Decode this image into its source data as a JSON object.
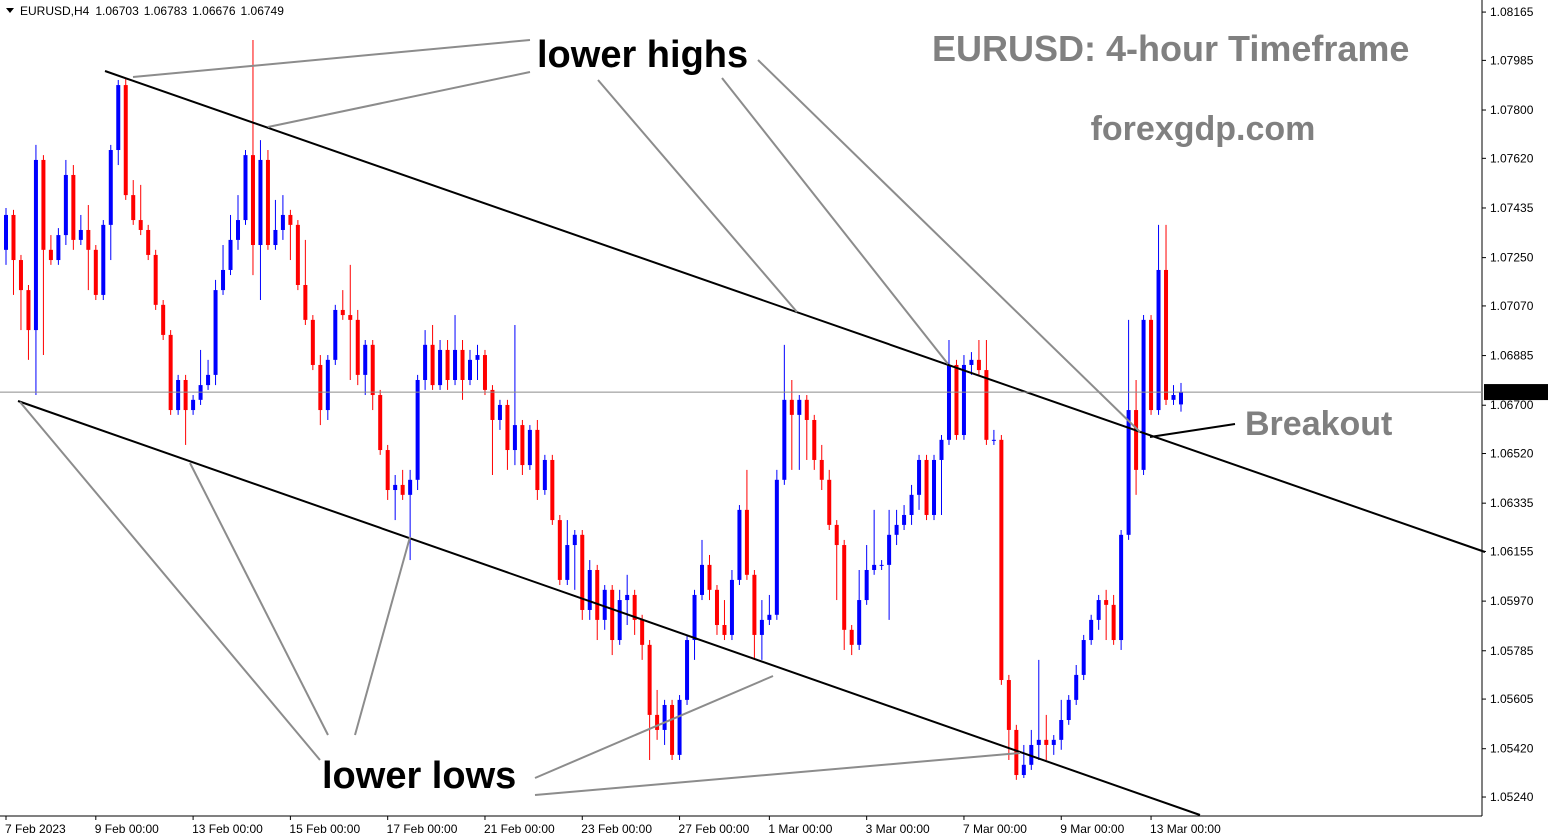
{
  "chart_data": {
    "type": "candlestick",
    "symbol": "EURUSD,H4",
    "title": "EURUSD: 4-hour Timeframe",
    "subtitle": "forexgdp.com",
    "annotations": [
      "lower highs",
      "lower lows",
      "Breakout"
    ],
    "up_color": "#0000ff",
    "down_color": "#ff0000",
    "categories": [
      "7 Feb 2023",
      null,
      null,
      null,
      null,
      null,
      null,
      null,
      null,
      null,
      null,
      null,
      "9 Feb 00:00",
      null,
      null,
      null,
      null,
      null,
      null,
      null,
      null,
      null,
      null,
      null,
      null,
      "13 Feb 00:00",
      null,
      null,
      null,
      null,
      null,
      null,
      null,
      null,
      null,
      null,
      null,
      null,
      "15 Feb 00:00",
      null,
      null,
      null,
      null,
      null,
      null,
      null,
      null,
      null,
      null,
      null,
      null,
      "17 Feb 00:00",
      null,
      null,
      null,
      null,
      null,
      null,
      null,
      null,
      null,
      null,
      null,
      null,
      "21 Feb 00:00",
      null,
      null,
      null,
      null,
      null,
      null,
      null,
      null,
      null,
      null,
      null,
      null,
      "23 Feb 00:00",
      null,
      null,
      null,
      null,
      null,
      null,
      null,
      null,
      null,
      null,
      null,
      null,
      "27 Feb 00:00",
      null,
      null,
      null,
      null,
      null,
      null,
      null,
      null,
      null,
      null,
      null,
      "1 Mar 00:00",
      null,
      null,
      null,
      null,
      null,
      null,
      null,
      null,
      null,
      null,
      null,
      null,
      "3 Mar 00:00",
      null,
      null,
      null,
      null,
      null,
      null,
      null,
      null,
      null,
      null,
      null,
      null,
      "7 Mar 00:00",
      null,
      null,
      null,
      null,
      null,
      null,
      null,
      null,
      null,
      null,
      null,
      null,
      "9 Mar 00:00",
      null,
      null,
      null,
      null,
      null,
      null,
      null,
      null,
      null,
      null,
      null,
      "13 Mar 00:00",
      null,
      null,
      null,
      null
    ],
    "open": [
      1.07279,
      1.07409,
      1.07241,
      1.07129,
      1.0698,
      1.07614,
      1.07279,
      1.07241,
      1.07334,
      1.07558,
      1.07316,
      1.07353,
      1.07279,
      1.07111,
      1.07372,
      1.07651,
      1.07893,
      1.07483,
      1.0739,
      1.07353,
      1.0726,
      1.07074,
      1.06962,
      1.06682,
      1.06794,
      1.06682,
      1.0672,
      1.06775,
      1.06813,
      1.07129,
      1.07204,
      1.07316,
      1.0739,
      1.07632,
      1.07297,
      1.07614,
      1.07297,
      1.07353,
      1.07409,
      1.07372,
      1.07148,
      1.07018,
      1.0685,
      1.06682,
      1.06869,
      1.07055,
      1.07036,
      1.07018,
      1.06813,
      1.06925,
      1.06738,
      1.06533,
      1.06384,
      1.06403,
      1.06366,
      1.06422,
      1.06794,
      1.06925,
      1.06775,
      1.06906,
      1.06794,
      1.06906,
      1.06794,
      1.06869,
      1.06887,
      1.06757,
      1.06645,
      1.06701,
      1.06533,
      1.06626,
      1.06477,
      1.06608,
      1.06384,
      1.06496,
      1.06272,
      1.06049,
      1.06179,
      1.06217,
      1.05937,
      1.06086,
      1.059,
      1.06012,
      1.05825,
      1.05974,
      1.05993,
      1.059,
      1.05807,
      1.05546,
      1.0549,
      1.05583,
      1.05397,
      1.05602,
      1.05825,
      1.05993,
      1.06105,
      1.06012,
      1.05881,
      1.05844,
      1.06049,
      1.0631,
      1.06068,
      1.05844,
      1.059,
      1.05919,
      1.06422,
      1.0672,
      1.06664,
      1.0672,
      1.06645,
      1.06496,
      1.06422,
      1.06254,
      1.06179,
      1.05863,
      1.05807,
      1.05974,
      1.06086,
      1.06105,
      1.06105,
      1.06217,
      1.06254,
      1.06291,
      1.06366,
      1.06496,
      1.06291,
      1.06496,
      1.06571,
      1.0685,
      1.06589,
      1.0685,
      1.06869,
      1.06831,
      1.06571,
      1.06571,
      1.05676,
      1.0549,
      1.05322,
      1.0536,
      1.05434,
      1.05453,
      1.05434,
      1.05453,
      1.05527,
      1.05602,
      1.05695,
      1.05825,
      1.059,
      1.05974,
      1.05956,
      1.05825,
      1.06217,
      1.06682,
      1.06459,
      1.07018,
      1.06682,
      1.07204,
      1.0672,
      1.06703
    ],
    "high": [
      1.07435,
      1.07428,
      1.0726,
      1.07148,
      1.0767,
      1.07632,
      1.07334,
      1.0736,
      1.07614,
      1.07595,
      1.07409,
      1.07446,
      1.07297,
      1.0739,
      1.0767,
      1.07912,
      1.07919,
      1.07539,
      1.07521,
      1.07372,
      1.07279,
      1.07092,
      1.0698,
      1.06813,
      1.06813,
      1.06738,
      1.06906,
      1.06869,
      1.07167,
      1.07297,
      1.07409,
      1.07483,
      1.07651,
      1.08061,
      1.07688,
      1.07651,
      1.07465,
      1.07483,
      1.07428,
      1.0739,
      1.07316,
      1.07036,
      1.06887,
      1.06887,
      1.07074,
      1.07129,
      1.07223,
      1.07055,
      1.06943,
      1.06943,
      1.06757,
      1.06552,
      1.0644,
      1.06459,
      1.06459,
      1.06813,
      1.0698,
      1.06999,
      1.06943,
      1.06943,
      1.07036,
      1.06943,
      1.06906,
      1.06925,
      1.06906,
      1.06775,
      1.0672,
      1.0672,
      1.06999,
      1.06645,
      1.06626,
      1.06645,
      1.06515,
      1.06515,
      1.06291,
      1.06272,
      1.06235,
      1.06235,
      1.06123,
      1.06105,
      1.0603,
      1.0603,
      1.06012,
      1.06068,
      1.06012,
      1.05919,
      1.05825,
      1.05639,
      1.05602,
      1.05602,
      1.0562,
      1.05844,
      1.06012,
      1.06198,
      1.06142,
      1.0603,
      1.05974,
      1.06086,
      1.06328,
      1.06459,
      1.06086,
      1.05974,
      1.05993,
      1.06459,
      1.06925,
      1.06794,
      1.06738,
      1.06738,
      1.06664,
      1.06552,
      1.06459,
      1.06272,
      1.06198,
      1.05881,
      1.06086,
      1.06179,
      1.0631,
      1.06123,
      1.0631,
      1.0631,
      1.06328,
      1.06403,
      1.06515,
      1.06515,
      1.06515,
      1.06589,
      1.06943,
      1.06869,
      1.06887,
      1.06898,
      1.06943,
      1.06943,
      1.06608,
      1.06589,
      1.05695,
      1.05509,
      1.05434,
      1.0549,
      1.05751,
      1.05546,
      1.05471,
      1.05602,
      1.0562,
      1.05732,
      1.05844,
      1.05919,
      1.05993,
      1.06012,
      1.05993,
      1.06235,
      1.07018,
      1.06794,
      1.07036,
      1.07036,
      1.07372,
      1.07372,
      1.06775,
      1.06783
    ],
    "low": [
      1.07223,
      1.07111,
      1.0698,
      1.06869,
      1.06738,
      1.06887,
      1.07223,
      1.07223,
      1.07297,
      1.07279,
      1.07297,
      1.07129,
      1.07092,
      1.07092,
      1.07241,
      1.07595,
      1.07465,
      1.07372,
      1.07334,
      1.07241,
      1.07055,
      1.06943,
      1.06664,
      1.06664,
      1.06552,
      1.06664,
      1.06701,
      1.06757,
      1.06775,
      1.07111,
      1.07185,
      1.07279,
      1.07372,
      1.07185,
      1.07092,
      1.07279,
      1.07279,
      1.07316,
      1.07241,
      1.07129,
      1.06999,
      1.06831,
      1.06626,
      1.06645,
      1.0685,
      1.07018,
      1.06794,
      1.06775,
      1.06738,
      1.06682,
      1.06515,
      1.06347,
      1.06272,
      1.06347,
      1.06123,
      1.06384,
      1.06757,
      1.06757,
      1.06757,
      1.06757,
      1.06775,
      1.0672,
      1.06775,
      1.06794,
      1.06738,
      1.0644,
      1.06608,
      1.06459,
      1.06477,
      1.0644,
      1.06459,
      1.06347,
      1.06366,
      1.06254,
      1.0603,
      1.0603,
      1.06012,
      1.059,
      1.059,
      1.05825,
      1.05863,
      1.05769,
      1.05807,
      1.05881,
      1.05844,
      1.05751,
      1.05378,
      1.05453,
      1.05434,
      1.05378,
      1.05378,
      1.05583,
      1.05751,
      1.05974,
      1.05974,
      1.05844,
      1.05825,
      1.05825,
      1.0603,
      1.06049,
      1.05751,
      1.05751,
      1.05881,
      1.059,
      1.06403,
      1.06459,
      1.06459,
      1.06496,
      1.06459,
      1.06384,
      1.06235,
      1.05974,
      1.05788,
      1.05769,
      1.05788,
      1.05956,
      1.06068,
      1.06086,
      1.059,
      1.06179,
      1.06235,
      1.06254,
      1.0631,
      1.06272,
      1.06272,
      1.06291,
      1.06552,
      1.06571,
      1.06571,
      1.06813,
      1.06813,
      1.06552,
      1.06552,
      1.05658,
      1.05378,
      1.05304,
      1.05311,
      1.05341,
      1.05378,
      1.05378,
      1.05397,
      1.05416,
      1.05509,
      1.05583,
      1.05676,
      1.05807,
      1.05863,
      1.05825,
      1.05807,
      1.05788,
      1.06198,
      1.06366,
      1.0644,
      1.06664,
      1.06664,
      1.06701,
      1.06701,
      1.06676
    ],
    "close": [
      1.07409,
      1.07241,
      1.07129,
      1.0698,
      1.07614,
      1.07279,
      1.07241,
      1.07334,
      1.07558,
      1.07316,
      1.07353,
      1.07279,
      1.07111,
      1.07372,
      1.07651,
      1.07893,
      1.07483,
      1.0739,
      1.07353,
      1.0726,
      1.07074,
      1.06962,
      1.06682,
      1.06794,
      1.06682,
      1.0672,
      1.06775,
      1.06813,
      1.07129,
      1.07204,
      1.07316,
      1.0739,
      1.07632,
      1.07297,
      1.07614,
      1.07297,
      1.07353,
      1.07409,
      1.07372,
      1.07148,
      1.07018,
      1.0685,
      1.06682,
      1.06869,
      1.07055,
      1.07036,
      1.07018,
      1.06813,
      1.06925,
      1.06738,
      1.06533,
      1.06384,
      1.06403,
      1.06366,
      1.06422,
      1.06794,
      1.06925,
      1.06775,
      1.06906,
      1.06794,
      1.06906,
      1.06794,
      1.06869,
      1.06887,
      1.06757,
      1.06645,
      1.06701,
      1.06533,
      1.06626,
      1.06477,
      1.06608,
      1.06384,
      1.06496,
      1.06272,
      1.06049,
      1.06179,
      1.06217,
      1.05937,
      1.06086,
      1.059,
      1.06012,
      1.05825,
      1.05974,
      1.05993,
      1.059,
      1.05807,
      1.05546,
      1.0549,
      1.05583,
      1.05397,
      1.05602,
      1.05825,
      1.05993,
      1.06105,
      1.06012,
      1.05881,
      1.05844,
      1.06049,
      1.0631,
      1.06068,
      1.05844,
      1.059,
      1.05919,
      1.06422,
      1.0672,
      1.06664,
      1.0672,
      1.06645,
      1.06496,
      1.06422,
      1.06254,
      1.06179,
      1.05863,
      1.05807,
      1.05974,
      1.06086,
      1.06105,
      1.06105,
      1.06217,
      1.06254,
      1.06291,
      1.06366,
      1.06496,
      1.06291,
      1.06496,
      1.06571,
      1.0685,
      1.06589,
      1.0685,
      1.06869,
      1.06831,
      1.06571,
      1.06571,
      1.05676,
      1.0549,
      1.05322,
      1.0536,
      1.05434,
      1.05453,
      1.05434,
      1.05453,
      1.05527,
      1.05602,
      1.05695,
      1.05825,
      1.059,
      1.05974,
      1.05956,
      1.05825,
      1.06217,
      1.06682,
      1.06459,
      1.07018,
      1.06682,
      1.07204,
      1.0672,
      1.06738,
      1.06749
    ],
    "ylim": [
      1.05173,
      1.0821
    ],
    "yticks": [
      1.08165,
      1.07985,
      {
        "value": 1.078,
        "label": "1.07800"
      },
      {
        "value": 1.0762,
        "label": "1.07620"
      },
      1.07435,
      {
        "value": 1.0725,
        "label": "1.07250"
      },
      {
        "value": 1.0707,
        "label": "1.07070"
      },
      1.06885,
      {
        "value": 1.067,
        "label": "1.06700"
      },
      {
        "value": 1.0652,
        "label": "1.06520"
      },
      1.06335,
      1.06155,
      {
        "value": 1.0597,
        "label": "1.05970"
      },
      1.05785,
      1.05605,
      {
        "value": 1.0542,
        "label": "1.05420"
      },
      {
        "value": 1.0524,
        "label": "1.05240"
      }
    ],
    "grid": false
  }
}
